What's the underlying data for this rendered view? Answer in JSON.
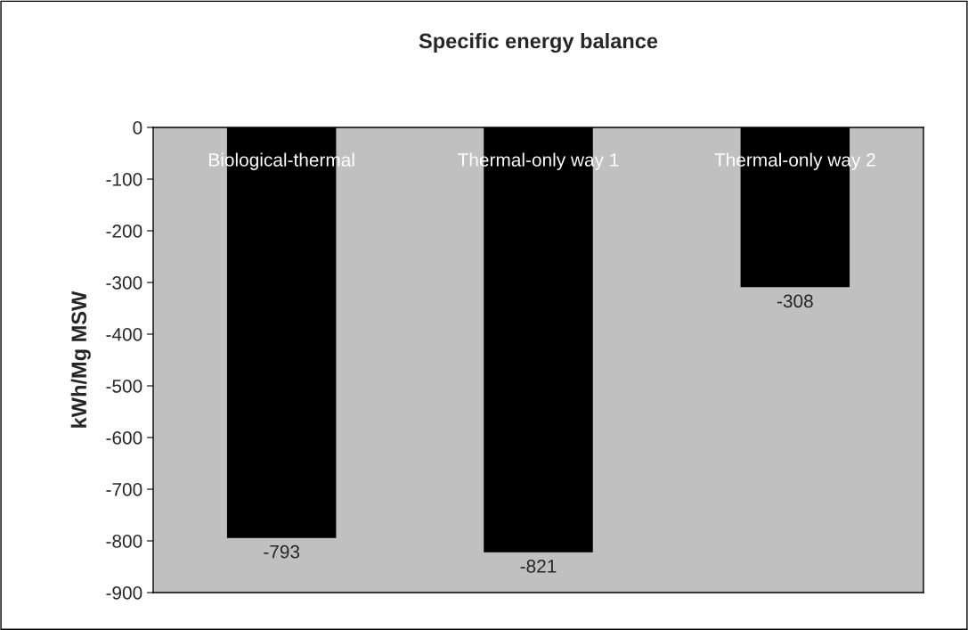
{
  "chart_data": {
    "type": "bar",
    "title": "Specific energy balance",
    "ylabel": "kWh/Mg MSW",
    "categories": [
      "Biological-thermal",
      "Thermal-only way 1",
      "Thermal-only way 2"
    ],
    "values": [
      -793,
      -821,
      -308
    ],
    "color": "#000000",
    "ylim": [
      -900,
      0
    ],
    "yticks": [
      -900,
      -800,
      -700,
      -600,
      -500,
      -400,
      -300,
      -200,
      -100,
      0
    ],
    "grid": false,
    "data_labels": true,
    "legend": false
  }
}
